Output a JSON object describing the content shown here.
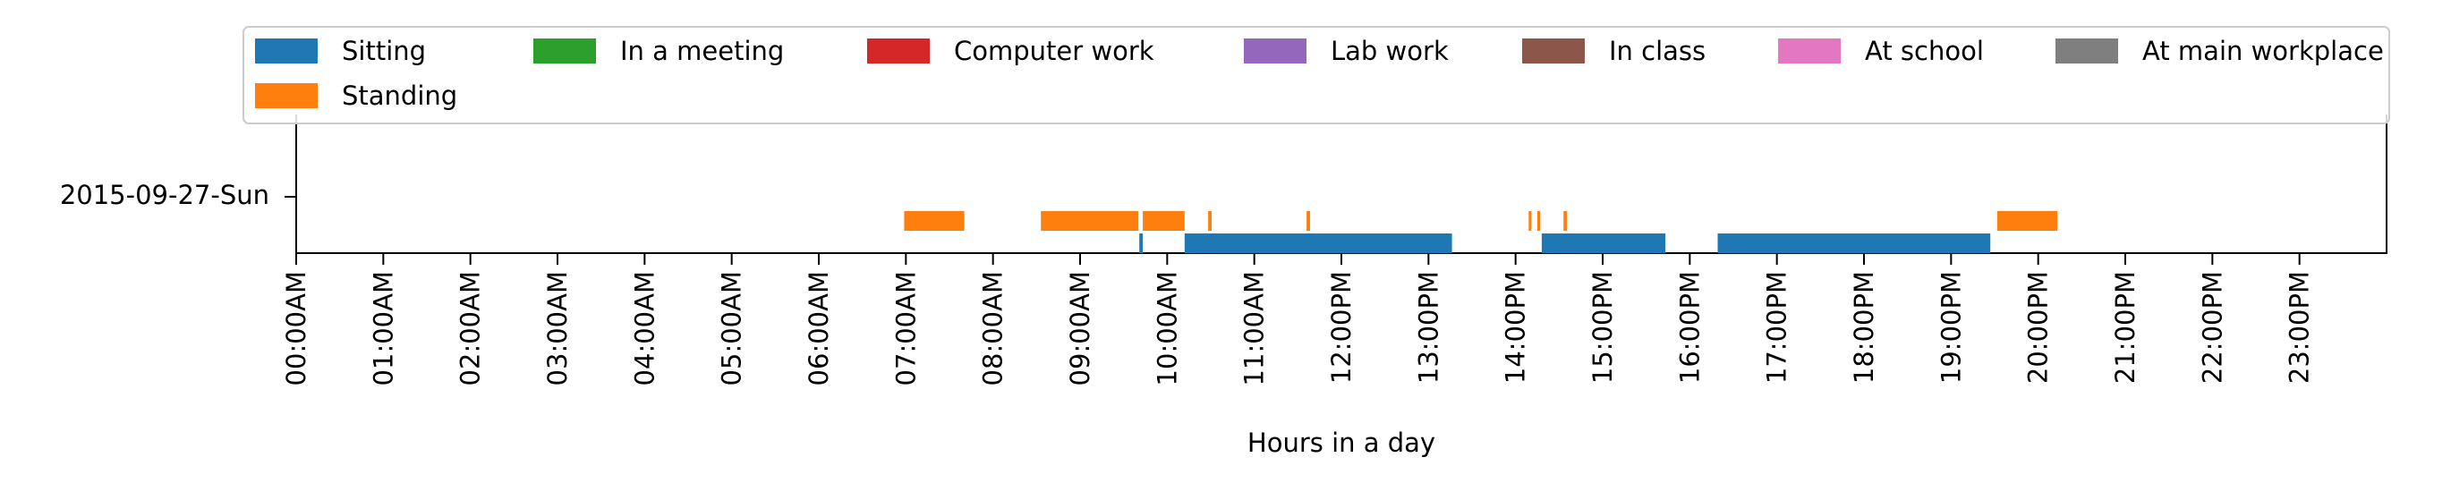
{
  "chart_data": {
    "type": "timeline",
    "ytick_labels": [
      "2015-09-27-Sun"
    ],
    "xlabel": "Hours in a day",
    "xlim": [
      0,
      24
    ],
    "xticks": [
      0,
      1,
      2,
      3,
      4,
      5,
      6,
      7,
      8,
      9,
      10,
      11,
      12,
      13,
      14,
      15,
      16,
      17,
      18,
      19,
      20,
      21,
      22,
      23
    ],
    "xtick_labels": [
      "00:00AM",
      "01:00AM",
      "02:00AM",
      "03:00AM",
      "04:00AM",
      "05:00AM",
      "06:00AM",
      "07:00AM",
      "08:00AM",
      "09:00AM",
      "10:00AM",
      "11:00AM",
      "12:00PM",
      "13:00PM",
      "14:00PM",
      "15:00PM",
      "16:00PM",
      "17:00PM",
      "18:00PM",
      "19:00PM",
      "20:00PM",
      "21:00PM",
      "22:00PM",
      "23:00PM"
    ],
    "legend_position": "top",
    "series": [
      {
        "name": "Sitting",
        "color": "#1f77b4",
        "level": 0,
        "intervals": [
          [
            9.68,
            9.72
          ],
          [
            10.2,
            13.27
          ],
          [
            14.3,
            15.72
          ],
          [
            16.32,
            19.45
          ]
        ]
      },
      {
        "name": "Standing",
        "color": "#ff7f0e",
        "level": 1,
        "intervals": [
          [
            6.98,
            7.67
          ],
          [
            8.55,
            9.67
          ],
          [
            9.72,
            10.2
          ],
          [
            10.47,
            10.51
          ],
          [
            11.6,
            11.64
          ],
          [
            14.15,
            14.18
          ],
          [
            14.25,
            14.28
          ],
          [
            14.55,
            14.59
          ],
          [
            19.53,
            20.22
          ]
        ]
      },
      {
        "name": "In a meeting",
        "color": "#2ca02c",
        "level": 2,
        "intervals": []
      },
      {
        "name": "Computer work",
        "color": "#d62728",
        "level": 3,
        "intervals": []
      },
      {
        "name": "Lab work",
        "color": "#9467bd",
        "level": 4,
        "intervals": []
      },
      {
        "name": "In class",
        "color": "#8c564b",
        "level": 5,
        "intervals": []
      },
      {
        "name": "At school",
        "color": "#e377c2",
        "level": 6,
        "intervals": []
      },
      {
        "name": "At main workplace",
        "color": "#7f7f7f",
        "level": 7,
        "intervals": []
      }
    ]
  }
}
